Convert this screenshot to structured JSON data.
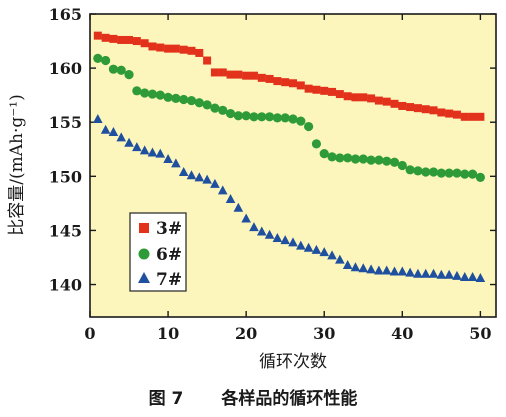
{
  "figure": {
    "caption_number": "图 7",
    "caption_text": "各样品的循环性能"
  },
  "chart_data": {
    "type": "scatter",
    "xlabel": "循环次数",
    "ylabel": "比容量/(mAh·g⁻¹)",
    "xlim": [
      0,
      52
    ],
    "ylim": [
      137,
      165
    ],
    "xticks": [
      0,
      10,
      20,
      30,
      40,
      50
    ],
    "yticks": [
      140,
      145,
      150,
      155,
      160,
      165
    ],
    "grid": false,
    "legend_position": "lower-left",
    "background_color": "#fdf6bc",
    "series": [
      {
        "name": "3#",
        "marker": "square",
        "color": "#e2321c",
        "x": [
          1,
          2,
          3,
          4,
          5,
          6,
          7,
          8,
          9,
          10,
          11,
          12,
          13,
          14,
          15,
          16,
          17,
          18,
          19,
          20,
          21,
          22,
          23,
          24,
          25,
          26,
          27,
          28,
          29,
          30,
          31,
          32,
          33,
          34,
          35,
          36,
          37,
          38,
          39,
          40,
          41,
          42,
          43,
          44,
          45,
          46,
          47,
          48,
          49,
          50
        ],
        "y": [
          163.0,
          162.8,
          162.7,
          162.6,
          162.6,
          162.5,
          162.3,
          162.0,
          161.9,
          161.8,
          161.8,
          161.7,
          161.6,
          161.4,
          160.7,
          159.6,
          159.6,
          159.4,
          159.4,
          159.3,
          159.3,
          159.1,
          159.0,
          158.8,
          158.7,
          158.6,
          158.4,
          158.1,
          158.0,
          157.9,
          157.8,
          157.6,
          157.4,
          157.3,
          157.3,
          157.2,
          157.0,
          156.9,
          156.7,
          156.5,
          156.4,
          156.3,
          156.2,
          156.1,
          155.9,
          155.8,
          155.7,
          155.5,
          155.5,
          155.5
        ]
      },
      {
        "name": "6#",
        "marker": "circle",
        "color": "#2f9b38",
        "x": [
          1,
          2,
          3,
          4,
          5,
          6,
          7,
          8,
          9,
          10,
          11,
          12,
          13,
          14,
          15,
          16,
          17,
          18,
          19,
          20,
          21,
          22,
          23,
          24,
          25,
          26,
          27,
          28,
          29,
          30,
          31,
          32,
          33,
          34,
          35,
          36,
          37,
          38,
          39,
          40,
          41,
          42,
          43,
          44,
          45,
          46,
          47,
          48,
          49,
          50
        ],
        "y": [
          160.9,
          160.7,
          159.9,
          159.8,
          159.4,
          157.9,
          157.7,
          157.6,
          157.5,
          157.3,
          157.2,
          157.1,
          157.0,
          156.8,
          156.6,
          156.3,
          156.1,
          155.8,
          155.6,
          155.6,
          155.5,
          155.5,
          155.5,
          155.4,
          155.4,
          155.3,
          155.1,
          154.6,
          153.0,
          152.1,
          151.8,
          151.7,
          151.7,
          151.6,
          151.6,
          151.5,
          151.5,
          151.4,
          151.3,
          151.0,
          150.6,
          150.5,
          150.4,
          150.4,
          150.3,
          150.3,
          150.3,
          150.2,
          150.2,
          149.9
        ]
      },
      {
        "name": "7#",
        "marker": "triangle",
        "color": "#1f4f9f",
        "x": [
          1,
          2,
          3,
          4,
          5,
          6,
          7,
          8,
          9,
          10,
          11,
          12,
          13,
          14,
          15,
          16,
          17,
          18,
          19,
          20,
          21,
          22,
          23,
          24,
          25,
          26,
          27,
          28,
          29,
          30,
          31,
          32,
          33,
          34,
          35,
          36,
          37,
          38,
          39,
          40,
          41,
          42,
          43,
          44,
          45,
          46,
          47,
          48,
          49,
          50
        ],
        "y": [
          155.3,
          154.3,
          154.1,
          153.6,
          153.1,
          152.7,
          152.4,
          152.2,
          152.1,
          151.6,
          151.2,
          150.4,
          150.1,
          149.9,
          149.7,
          149.3,
          148.7,
          147.9,
          147.1,
          146.1,
          145.3,
          144.9,
          144.6,
          144.3,
          144.1,
          143.9,
          143.6,
          143.4,
          143.2,
          143.0,
          142.7,
          142.3,
          141.8,
          141.6,
          141.5,
          141.4,
          141.3,
          141.3,
          141.2,
          141.2,
          141.1,
          141.0,
          141.0,
          141.0,
          140.9,
          140.9,
          140.8,
          140.7,
          140.7,
          140.6
        ]
      }
    ]
  }
}
